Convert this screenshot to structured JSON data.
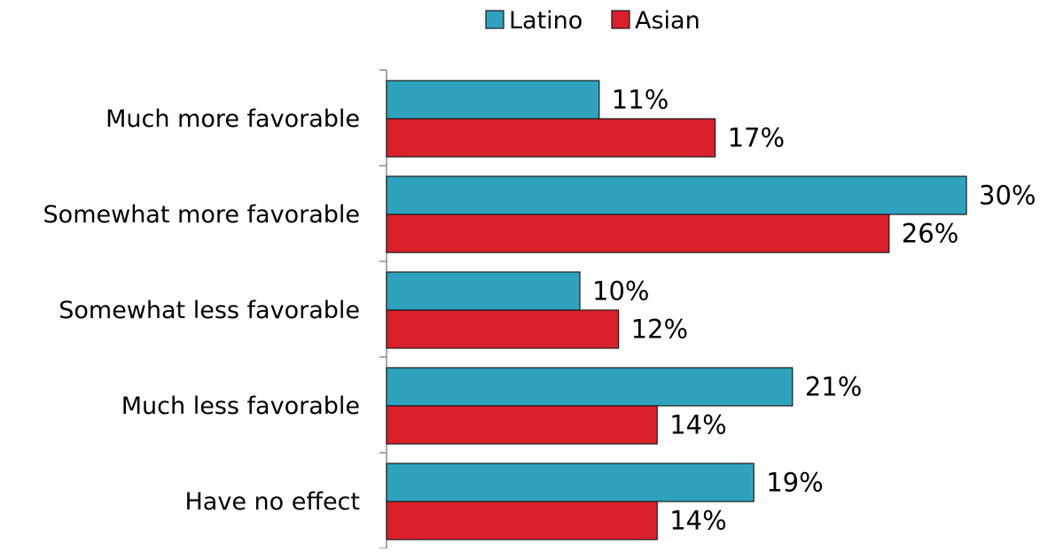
{
  "chart_data": {
    "type": "bar",
    "orientation": "horizontal",
    "categories": [
      "Much more favorable",
      "Somewhat more favorable",
      "Somewhat less favorable",
      "Much less favorable",
      "Have no effect"
    ],
    "series": [
      {
        "name": "Latino",
        "color": "#2fa3be",
        "values": [
          11,
          30,
          10,
          21,
          19
        ],
        "labels": [
          "11%",
          "30%",
          "10%",
          "21%",
          "19%"
        ]
      },
      {
        "name": "Asian",
        "color": "#d9202b",
        "values": [
          17,
          26,
          12,
          14,
          14
        ],
        "labels": [
          "17%",
          "26%",
          "12%",
          "14%",
          "14%"
        ]
      }
    ],
    "xlim": [
      0,
      30
    ],
    "grid": false,
    "legend_position": "top-center",
    "title": "",
    "xlabel": "",
    "ylabel": ""
  }
}
